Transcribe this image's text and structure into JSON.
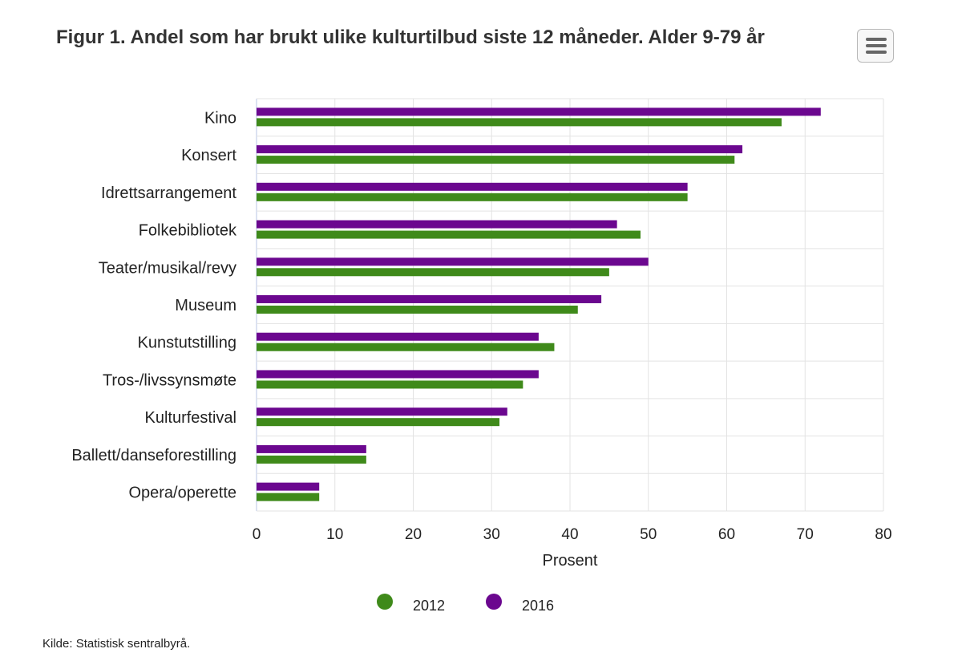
{
  "title": "Figur 1. Andel som har brukt ulike kulturtilbud siste 12 måneder. Alder 9-79 år",
  "menu_icon": "hamburger-menu-icon",
  "source": "Kilde: Statistisk sentralbyrå.",
  "colors": {
    "s2012": "#3f8a1a",
    "s2016": "#6b078f",
    "grid": "#e3e3e3"
  },
  "chart_data": {
    "type": "bar",
    "orientation": "horizontal",
    "categories": [
      "Kino",
      "Konsert",
      "Idrettsarrangement",
      "Folkebibliotek",
      "Teater/musikal/revy",
      "Museum",
      "Kunstutstilling",
      "Tros-/livssynsmøte",
      "Kulturfestival",
      "Ballett/danseforestilling",
      "Opera/operette"
    ],
    "series": [
      {
        "name": "2016",
        "color": "#6b078f",
        "values": [
          72,
          62,
          55,
          46,
          50,
          44,
          36,
          36,
          32,
          14,
          8
        ]
      },
      {
        "name": "2012",
        "color": "#3f8a1a",
        "values": [
          67,
          61,
          55,
          49,
          45,
          41,
          38,
          34,
          31,
          14,
          8
        ]
      }
    ],
    "xlabel": "Prosent",
    "xlim": [
      0,
      80
    ],
    "xticks": [
      0,
      10,
      20,
      30,
      40,
      50,
      60,
      70,
      80
    ],
    "grid": true,
    "legend": {
      "position": "bottom",
      "order": [
        "2012",
        "2016"
      ]
    }
  }
}
